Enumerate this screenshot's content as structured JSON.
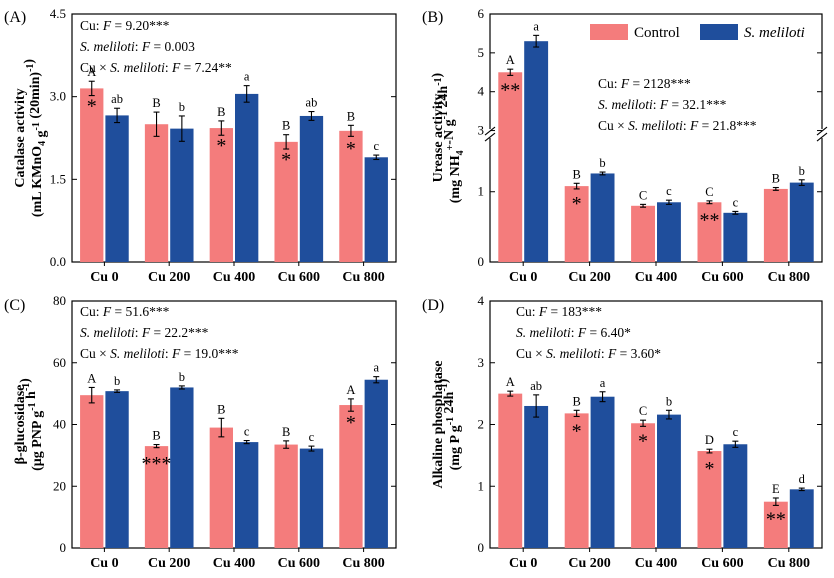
{
  "colors": {
    "control": "#f47c7c",
    "treatment": "#1f4e9c"
  },
  "legend": {
    "control": "Control",
    "treatment": "S. meliloti"
  },
  "chart_data": [
    {
      "panel": "(A)",
      "type": "bar",
      "ylabel_line1": "Catalase activity",
      "ylabel_line2": "(mL KMnO4 g-1 (20min)-1)",
      "categories": [
        "Cu 0",
        "Cu 200",
        "Cu 400",
        "Cu 600",
        "Cu 800"
      ],
      "ylim": [
        0,
        4.5
      ],
      "ticks": [
        0,
        1.5,
        3.0,
        4.5
      ],
      "tick_labels": [
        "0.0",
        "1.5",
        "3.0",
        "4.5"
      ],
      "series": [
        {
          "name": "Control",
          "values": [
            3.15,
            2.5,
            2.43,
            2.18,
            2.38
          ],
          "errors": [
            0.13,
            0.22,
            0.13,
            0.13,
            0.1
          ],
          "letters": [
            "A",
            "B",
            "B",
            "B",
            "B"
          ]
        },
        {
          "name": "S. meliloti",
          "values": [
            2.66,
            2.42,
            3.05,
            2.65,
            1.9
          ],
          "errors": [
            0.13,
            0.23,
            0.15,
            0.08,
            0.04
          ],
          "letters": [
            "ab",
            "b",
            "a",
            "ab",
            "c"
          ]
        }
      ],
      "stars": [
        "*",
        "",
        "*",
        "*",
        "*"
      ],
      "stats": [
        "Cu: F = 9.20***",
        "S. meliloti: F = 0.003",
        "Cu × S. meliloti: F = 7.24**"
      ]
    },
    {
      "panel": "(B)",
      "type": "bar",
      "ylabel_line1": "Urease activity",
      "ylabel_line2": "(mg NH4+-N g-1 24h-1)",
      "categories": [
        "Cu 0",
        "Cu 200",
        "Cu 400",
        "Cu 600",
        "Cu 800"
      ],
      "axis_break": {
        "lower": [
          0,
          1.8
        ],
        "upper": [
          3,
          6
        ]
      },
      "ticks": [
        0,
        1,
        3,
        4,
        5,
        6
      ],
      "tick_labels": [
        "0",
        "1",
        "3",
        "4",
        "5",
        "6"
      ],
      "series": [
        {
          "name": "Control",
          "values": [
            4.5,
            1.08,
            0.8,
            0.85,
            1.04
          ],
          "errors": [
            0.08,
            0.04,
            0.02,
            0.02,
            0.02
          ],
          "letters": [
            "A",
            "B",
            "C",
            "C",
            "B"
          ]
        },
        {
          "name": "S. meliloti",
          "values": [
            5.3,
            1.26,
            0.85,
            0.7,
            1.13
          ],
          "errors": [
            0.15,
            0.02,
            0.03,
            0.02,
            0.04
          ],
          "letters": [
            "a",
            "b",
            "c",
            "c",
            "b"
          ]
        }
      ],
      "stars": [
        "**",
        "*",
        "",
        "**",
        ""
      ],
      "stats": [
        "Cu: F = 2128***",
        "S. meliloti: F = 32.1***",
        "Cu × S. meliloti: F = 21.8***"
      ]
    },
    {
      "panel": "(C)",
      "type": "bar",
      "ylabel_line1": "β-glucosidase",
      "ylabel_line2": "(μg PNP g-1 h-1)",
      "categories": [
        "Cu 0",
        "Cu 200",
        "Cu 400",
        "Cu 600",
        "Cu 800"
      ],
      "ylim": [
        0,
        80
      ],
      "ticks": [
        0,
        20,
        40,
        60,
        80
      ],
      "tick_labels": [
        "0",
        "20",
        "40",
        "60",
        "80"
      ],
      "series": [
        {
          "name": "Control",
          "values": [
            49.5,
            33.0,
            39.0,
            33.5,
            46.3
          ],
          "errors": [
            2.5,
            0.5,
            3.0,
            1.2,
            2.0
          ],
          "letters": [
            "A",
            "B",
            "B",
            "B",
            "A"
          ]
        },
        {
          "name": "S. meliloti",
          "values": [
            50.8,
            52.0,
            34.3,
            32.2,
            54.5
          ],
          "errors": [
            0.4,
            0.5,
            0.5,
            0.8,
            1.0
          ],
          "letters": [
            "b",
            "b",
            "c",
            "c",
            "a"
          ]
        }
      ],
      "stars": [
        "",
        "***",
        "",
        "",
        "*"
      ],
      "stats": [
        "Cu: F = 51.6***",
        "S. meliloti: F = 22.2***",
        "Cu × S. meliloti: F = 19.0***"
      ]
    },
    {
      "panel": "(D)",
      "type": "bar",
      "ylabel_line1": "Alkaline phosphatase",
      "ylabel_line2": "(mg P g-1 24h-1)",
      "categories": [
        "Cu 0",
        "Cu 200",
        "Cu 400",
        "Cu 600",
        "Cu 800"
      ],
      "ylim": [
        0,
        4
      ],
      "ticks": [
        0,
        1,
        2,
        3,
        4
      ],
      "tick_labels": [
        "0",
        "1",
        "2",
        "3",
        "4"
      ],
      "series": [
        {
          "name": "Control",
          "values": [
            2.5,
            2.18,
            2.02,
            1.57,
            0.75
          ],
          "errors": [
            0.04,
            0.05,
            0.05,
            0.03,
            0.06
          ],
          "letters": [
            "A",
            "B",
            "C",
            "D",
            "E"
          ]
        },
        {
          "name": "S. meliloti",
          "values": [
            2.3,
            2.45,
            2.16,
            1.68,
            0.95
          ],
          "errors": [
            0.18,
            0.08,
            0.07,
            0.05,
            0.02
          ],
          "letters": [
            "ab",
            "a",
            "b",
            "c",
            "d"
          ]
        }
      ],
      "stars": [
        "",
        "*",
        "*",
        "*",
        "**"
      ],
      "stats": [
        "Cu: F = 183***",
        "S. meliloti: F = 6.40*",
        "Cu × S. meliloti: F = 3.60*"
      ]
    }
  ]
}
